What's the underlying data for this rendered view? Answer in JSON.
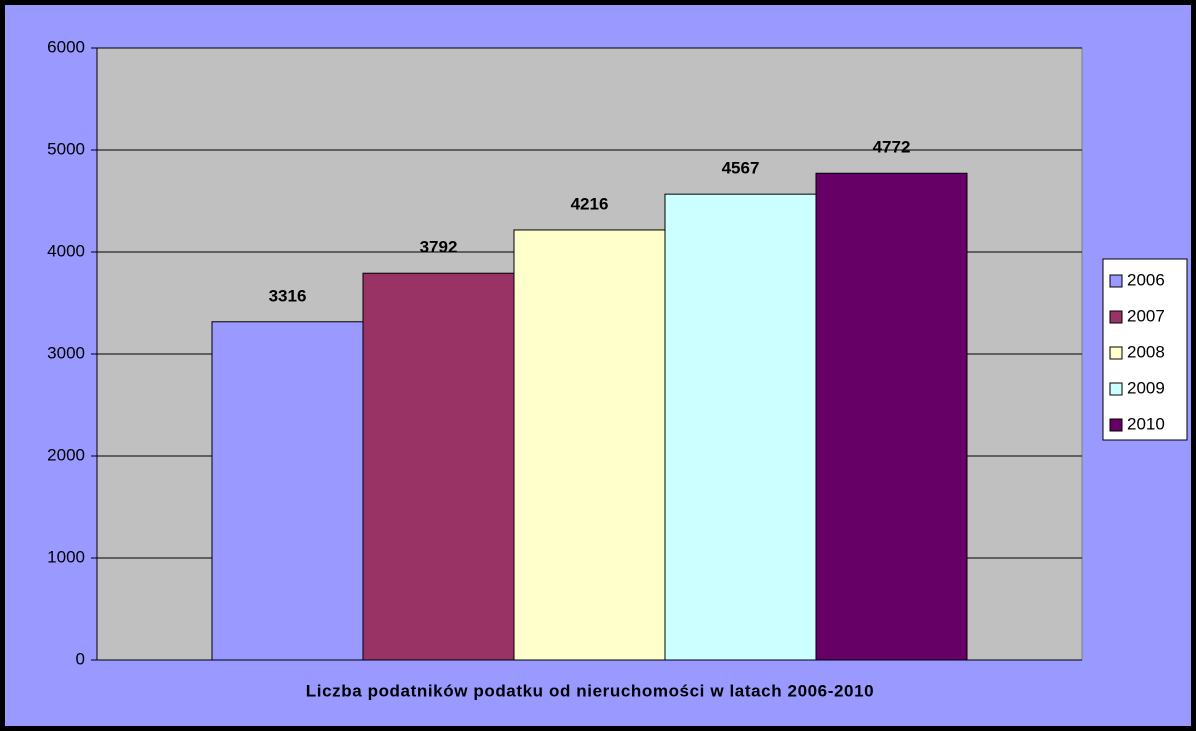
{
  "chart_data": {
    "type": "bar",
    "xlabel": "Liczba podatników podatku od nieruchomości w latach 2006-2010",
    "categories": [
      null
    ],
    "series": [
      {
        "name": "2006",
        "color": "#9999ff",
        "values": [
          3316
        ]
      },
      {
        "name": "2007",
        "color": "#993366",
        "values": [
          3792
        ]
      },
      {
        "name": "2008",
        "color": "#ffffcc",
        "values": [
          4216
        ]
      },
      {
        "name": "2009",
        "color": "#ccffff",
        "values": [
          4567
        ]
      },
      {
        "name": "2010",
        "color": "#660066",
        "values": [
          4772
        ]
      }
    ],
    "ylim": [
      0,
      6000
    ],
    "yticks": [
      0,
      1000,
      2000,
      3000,
      4000,
      5000,
      6000
    ],
    "grid": true,
    "legend": "right",
    "plot_color": "#c0c0c0",
    "background": "#9999ff"
  }
}
